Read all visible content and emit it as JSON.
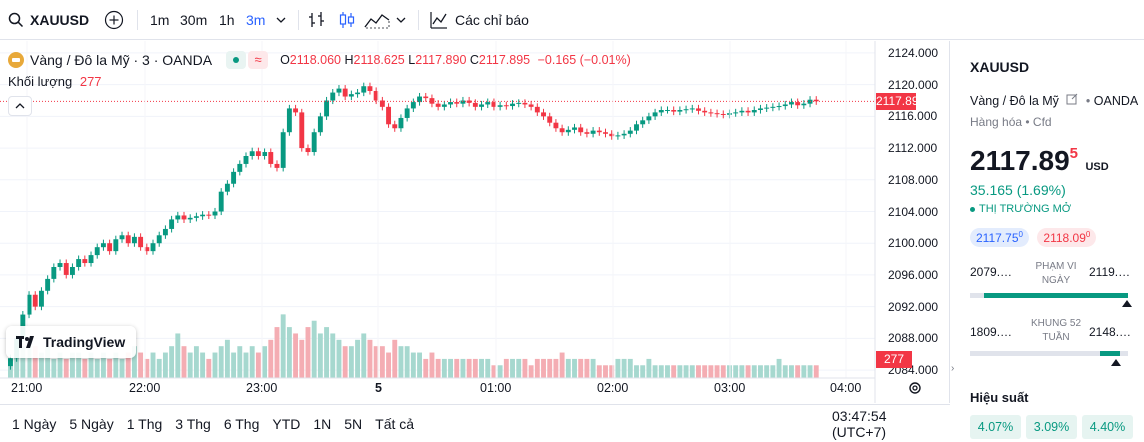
{
  "toolbar": {
    "symbol": "XAUUSD",
    "intervals": [
      "1m",
      "30m",
      "1h",
      "3m"
    ],
    "active_interval": "3m",
    "indicators_label": "Các chỉ báo"
  },
  "legend": {
    "title": "Vàng / Đô la Mỹ · 3 · OANDA",
    "open_label": "O",
    "open": "2118.060",
    "high_label": "H",
    "high": "2118.625",
    "low_label": "L",
    "low": "2117.890",
    "close_label": "C",
    "close": "2117.895",
    "change": "−0.165 (−0.01%)",
    "volume_label": "Khối lượng",
    "volume": "277"
  },
  "price_axis": {
    "ticks": [
      "2124.000",
      "2120.000",
      "2116.000",
      "2112.000",
      "2108.000",
      "2104.000",
      "2100.000",
      "2096.000",
      "2092.000",
      "2088.000",
      "2084.000"
    ],
    "current_price": "2117.895",
    "current_volume": "277"
  },
  "time_axis": {
    "ticks": [
      "21:00",
      "22:00",
      "23:00",
      "5",
      "01:00",
      "02:00",
      "03:00",
      "04:00"
    ]
  },
  "watermark": "TradingView",
  "bottom_bar": {
    "ranges": [
      "1 Ngày",
      "5 Ngày",
      "1 Thg",
      "3 Thg",
      "6 Thg",
      "YTD",
      "1N",
      "5N",
      "Tất cả"
    ],
    "clock": "03:47:54 (UTC+7)"
  },
  "panel": {
    "symbol": "XAUUSD",
    "name": "Vàng / Đô la Mỹ",
    "exchange": "OANDA",
    "category": "Hàng hóa • Cfd",
    "price_main": "2117.89",
    "price_sup": "5",
    "currency": "USD",
    "change": "35.165 (1.69%)",
    "market_status": "THỊ TRƯỜNG MỞ",
    "bid": "2117.75",
    "bid_sup": "0",
    "ask": "2118.09",
    "ask_sup": "0",
    "day_low": "2079.…",
    "day_label": "PHẠM VI NGÀY",
    "day_high": "2119.…",
    "week_low": "1809.…",
    "week_label": "KHUNG 52 TUẦN",
    "week_high": "2148.…",
    "performance_label": "Hiệu suất",
    "performance": [
      "4.07%",
      "3.09%",
      "4.40%"
    ]
  },
  "colors": {
    "up": "#089981",
    "down": "#f23645",
    "accent": "#2962ff"
  },
  "chart_data": {
    "type": "candlestick",
    "ylim": [
      2083,
      2125
    ],
    "closes": [
      2085.5,
      2088,
      2091,
      2093.5,
      2092,
      2094,
      2095.5,
      2097,
      2097.5,
      2096,
      2097,
      2098,
      2097.5,
      2098.5,
      2099.5,
      2100,
      2099,
      2100.5,
      2101,
      2100,
      2100.8,
      2099.5,
      2099,
      2100,
      2101,
      2101.8,
      2103,
      2103.5,
      2103,
      2103.2,
      2103.4,
      2103.6,
      2103.5,
      2104,
      2106.5,
      2107.5,
      2109,
      2110,
      2111,
      2111.6,
      2111,
      2111.5,
      2110,
      2109.5,
      2114,
      2117,
      2116.5,
      2112,
      2111.5,
      2114,
      2116,
      2118,
      2119,
      2119.5,
      2118.5,
      2118.8,
      2119,
      2119.8,
      2119.2,
      2118,
      2117.2,
      2115,
      2114.5,
      2115.8,
      2117,
      2117.8,
      2118.5,
      2118.3,
      2117.6,
      2117.2,
      2117.5,
      2117.8,
      2117.6,
      2118,
      2117.7,
      2117.2,
      2117.5,
      2117.8,
      2117.2,
      2117.4,
      2117.3,
      2117.6,
      2117.7,
      2117.5,
      2117.2,
      2116.5,
      2116,
      2115.2,
      2114.5,
      2114,
      2114.3,
      2114.6,
      2114,
      2113.8,
      2114.2,
      2114,
      2113.8,
      2113.5,
      2113.6,
      2113.8,
      2114.2,
      2115,
      2115.5,
      2116,
      2116.5,
      2116.8,
      2116.8,
      2116.6,
      2116.8,
      2116.9,
      2117,
      2116.7,
      2116.5,
      2116.4,
      2116.3,
      2116.2,
      2116.4,
      2116.5,
      2116.7,
      2116.5,
      2116.8,
      2117,
      2117.1,
      2117.2,
      2117.3,
      2117.5,
      2117.8,
      2117.4,
      2117.6,
      2118.1,
      2117.9
    ],
    "volumes": [
      3,
      4,
      5,
      6,
      5,
      4,
      5,
      3,
      4,
      3,
      4,
      4,
      3,
      4,
      3,
      4,
      3,
      4,
      3,
      4,
      5,
      4,
      3,
      4,
      3,
      4,
      5,
      7,
      5,
      4,
      5,
      4,
      3,
      4,
      5,
      6,
      4,
      5,
      4,
      5,
      4,
      5,
      6,
      8,
      10,
      8,
      7,
      6,
      8,
      9,
      7,
      8,
      7,
      6,
      5,
      5,
      6,
      7,
      6,
      5,
      5,
      4,
      6,
      5,
      5,
      4,
      4,
      3,
      4,
      3,
      3,
      3,
      3,
      3,
      3,
      3,
      3,
      3,
      2,
      2,
      3,
      3,
      3,
      3,
      2,
      3,
      3,
      3,
      3,
      4,
      3,
      3,
      3,
      3,
      3,
      2,
      2,
      2,
      3,
      3,
      3,
      2,
      2,
      3,
      2,
      2,
      2,
      2,
      2,
      2,
      2,
      2,
      2,
      2,
      2,
      2,
      2,
      2,
      2,
      2,
      2,
      2,
      2,
      2,
      3,
      2,
      2,
      2,
      2,
      2,
      2
    ]
  }
}
